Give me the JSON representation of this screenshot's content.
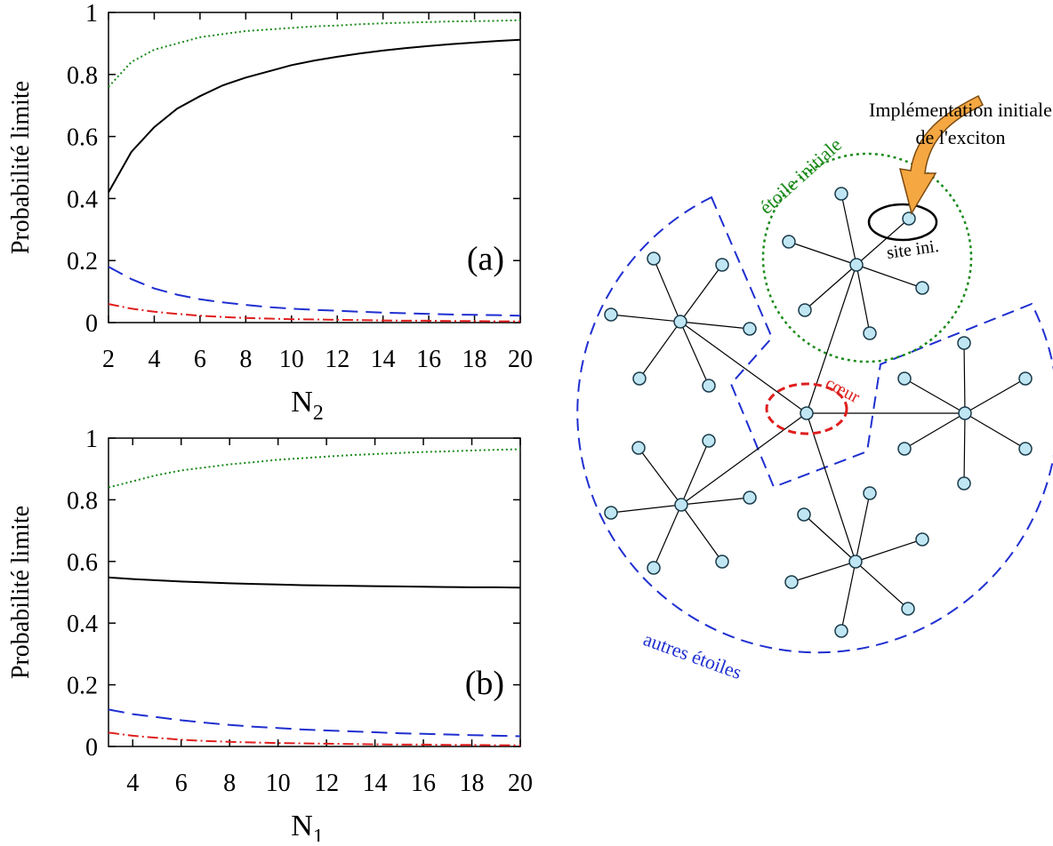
{
  "chart_data": [
    {
      "type": "line",
      "panel_label": "(a)",
      "ylabel": "Probabilité limite",
      "xlabel": "N",
      "xlabel_sub": "2",
      "x": [
        2,
        3,
        4,
        5,
        6,
        7,
        8,
        9,
        10,
        11,
        12,
        13,
        14,
        15,
        16,
        17,
        18,
        19,
        20
      ],
      "xlim": [
        2,
        20
      ],
      "xticks": [
        2,
        4,
        6,
        8,
        10,
        12,
        14,
        16,
        18,
        20
      ],
      "ylim": [
        0,
        1
      ],
      "yticks": [
        0,
        0.2,
        0.4,
        0.6,
        0.8,
        1
      ],
      "series": [
        {
          "color": "#000000",
          "style": "solid",
          "values": [
            0.42,
            0.55,
            0.63,
            0.69,
            0.73,
            0.765,
            0.79,
            0.81,
            0.83,
            0.845,
            0.857,
            0.868,
            0.877,
            0.885,
            0.892,
            0.898,
            0.903,
            0.908,
            0.912
          ]
        },
        {
          "color": "#1a8a1a",
          "style": "dotted",
          "values": [
            0.76,
            0.84,
            0.88,
            0.9,
            0.92,
            0.93,
            0.94,
            0.945,
            0.95,
            0.955,
            0.958,
            0.962,
            0.965,
            0.967,
            0.969,
            0.971,
            0.972,
            0.973,
            0.975
          ]
        },
        {
          "color": "#1f2fd0",
          "style": "dashed",
          "values": [
            0.18,
            0.14,
            0.11,
            0.09,
            0.075,
            0.065,
            0.057,
            0.05,
            0.045,
            0.041,
            0.038,
            0.035,
            0.032,
            0.03,
            0.028,
            0.026,
            0.025,
            0.024,
            0.022
          ]
        },
        {
          "color": "#e01e1e",
          "style": "dashdot",
          "values": [
            0.06,
            0.045,
            0.035,
            0.028,
            0.022,
            0.018,
            0.015,
            0.013,
            0.011,
            0.01,
            0.009,
            0.008,
            0.007,
            0.006,
            0.006,
            0.005,
            0.005,
            0.004,
            0.004
          ]
        }
      ]
    },
    {
      "type": "line",
      "panel_label": "(b)",
      "ylabel": "Probabilité limite",
      "xlabel": "N",
      "xlabel_sub": "1",
      "x": [
        3,
        4,
        5,
        6,
        7,
        8,
        9,
        10,
        11,
        12,
        13,
        14,
        15,
        16,
        17,
        18,
        19,
        20
      ],
      "xlim": [
        3,
        20
      ],
      "xticks": [
        4,
        6,
        8,
        10,
        12,
        14,
        16,
        18,
        20
      ],
      "ylim": [
        0,
        1
      ],
      "yticks": [
        0,
        0.2,
        0.4,
        0.6,
        0.8,
        1
      ],
      "series": [
        {
          "color": "#000000",
          "style": "solid",
          "values": [
            0.548,
            0.543,
            0.539,
            0.535,
            0.532,
            0.529,
            0.527,
            0.525,
            0.523,
            0.522,
            0.521,
            0.52,
            0.519,
            0.518,
            0.517,
            0.516,
            0.516,
            0.515
          ]
        },
        {
          "color": "#1a8a1a",
          "style": "dotted",
          "values": [
            0.84,
            0.86,
            0.88,
            0.895,
            0.905,
            0.915,
            0.922,
            0.93,
            0.935,
            0.94,
            0.945,
            0.948,
            0.952,
            0.955,
            0.957,
            0.96,
            0.962,
            0.964
          ]
        },
        {
          "color": "#1f2fd0",
          "style": "dashed",
          "values": [
            0.12,
            0.105,
            0.095,
            0.085,
            0.077,
            0.07,
            0.064,
            0.06,
            0.055,
            0.052,
            0.049,
            0.046,
            0.043,
            0.041,
            0.039,
            0.037,
            0.035,
            0.033
          ]
        },
        {
          "color": "#e01e1e",
          "style": "dashdot",
          "values": [
            0.045,
            0.035,
            0.028,
            0.022,
            0.018,
            0.015,
            0.013,
            0.011,
            0.01,
            0.009,
            0.008,
            0.007,
            0.006,
            0.006,
            0.005,
            0.005,
            0.004,
            0.004
          ]
        }
      ]
    }
  ],
  "diagram": {
    "labels": {
      "implementation_line1": "Implémentation initiale",
      "implementation_line2": "de l'exciton",
      "initial_star": "étoile initiale",
      "initial_site": "site ini.",
      "core": "cœur",
      "other_stars": "autres étoiles"
    }
  }
}
